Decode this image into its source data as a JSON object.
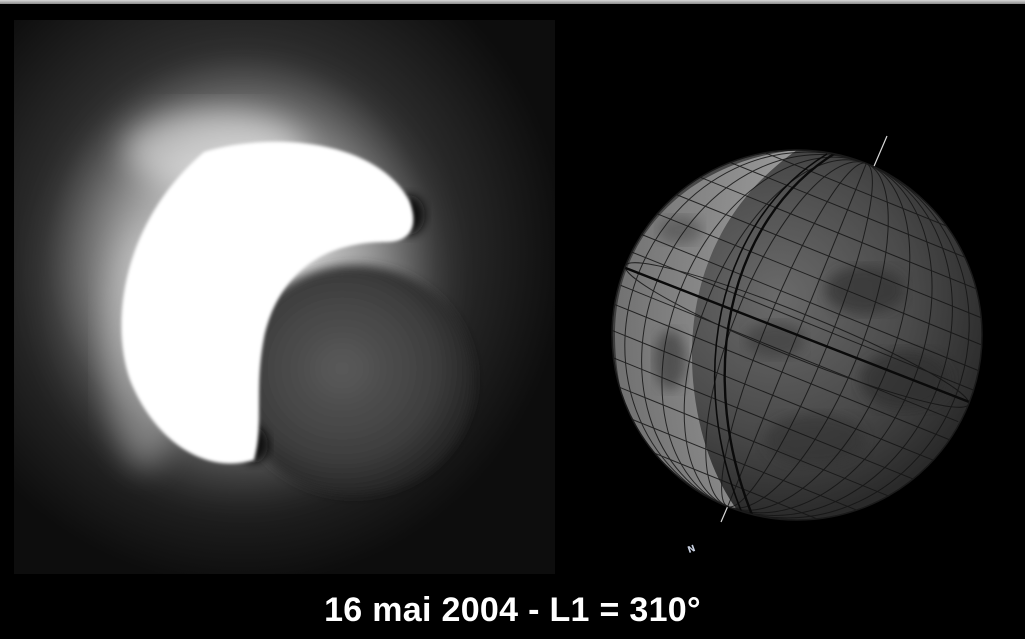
{
  "caption": "16 mai 2004 - L1 = 310°",
  "globe_marker": "N",
  "colors": {
    "background": "#000000",
    "caption_text": "#ffffff"
  }
}
